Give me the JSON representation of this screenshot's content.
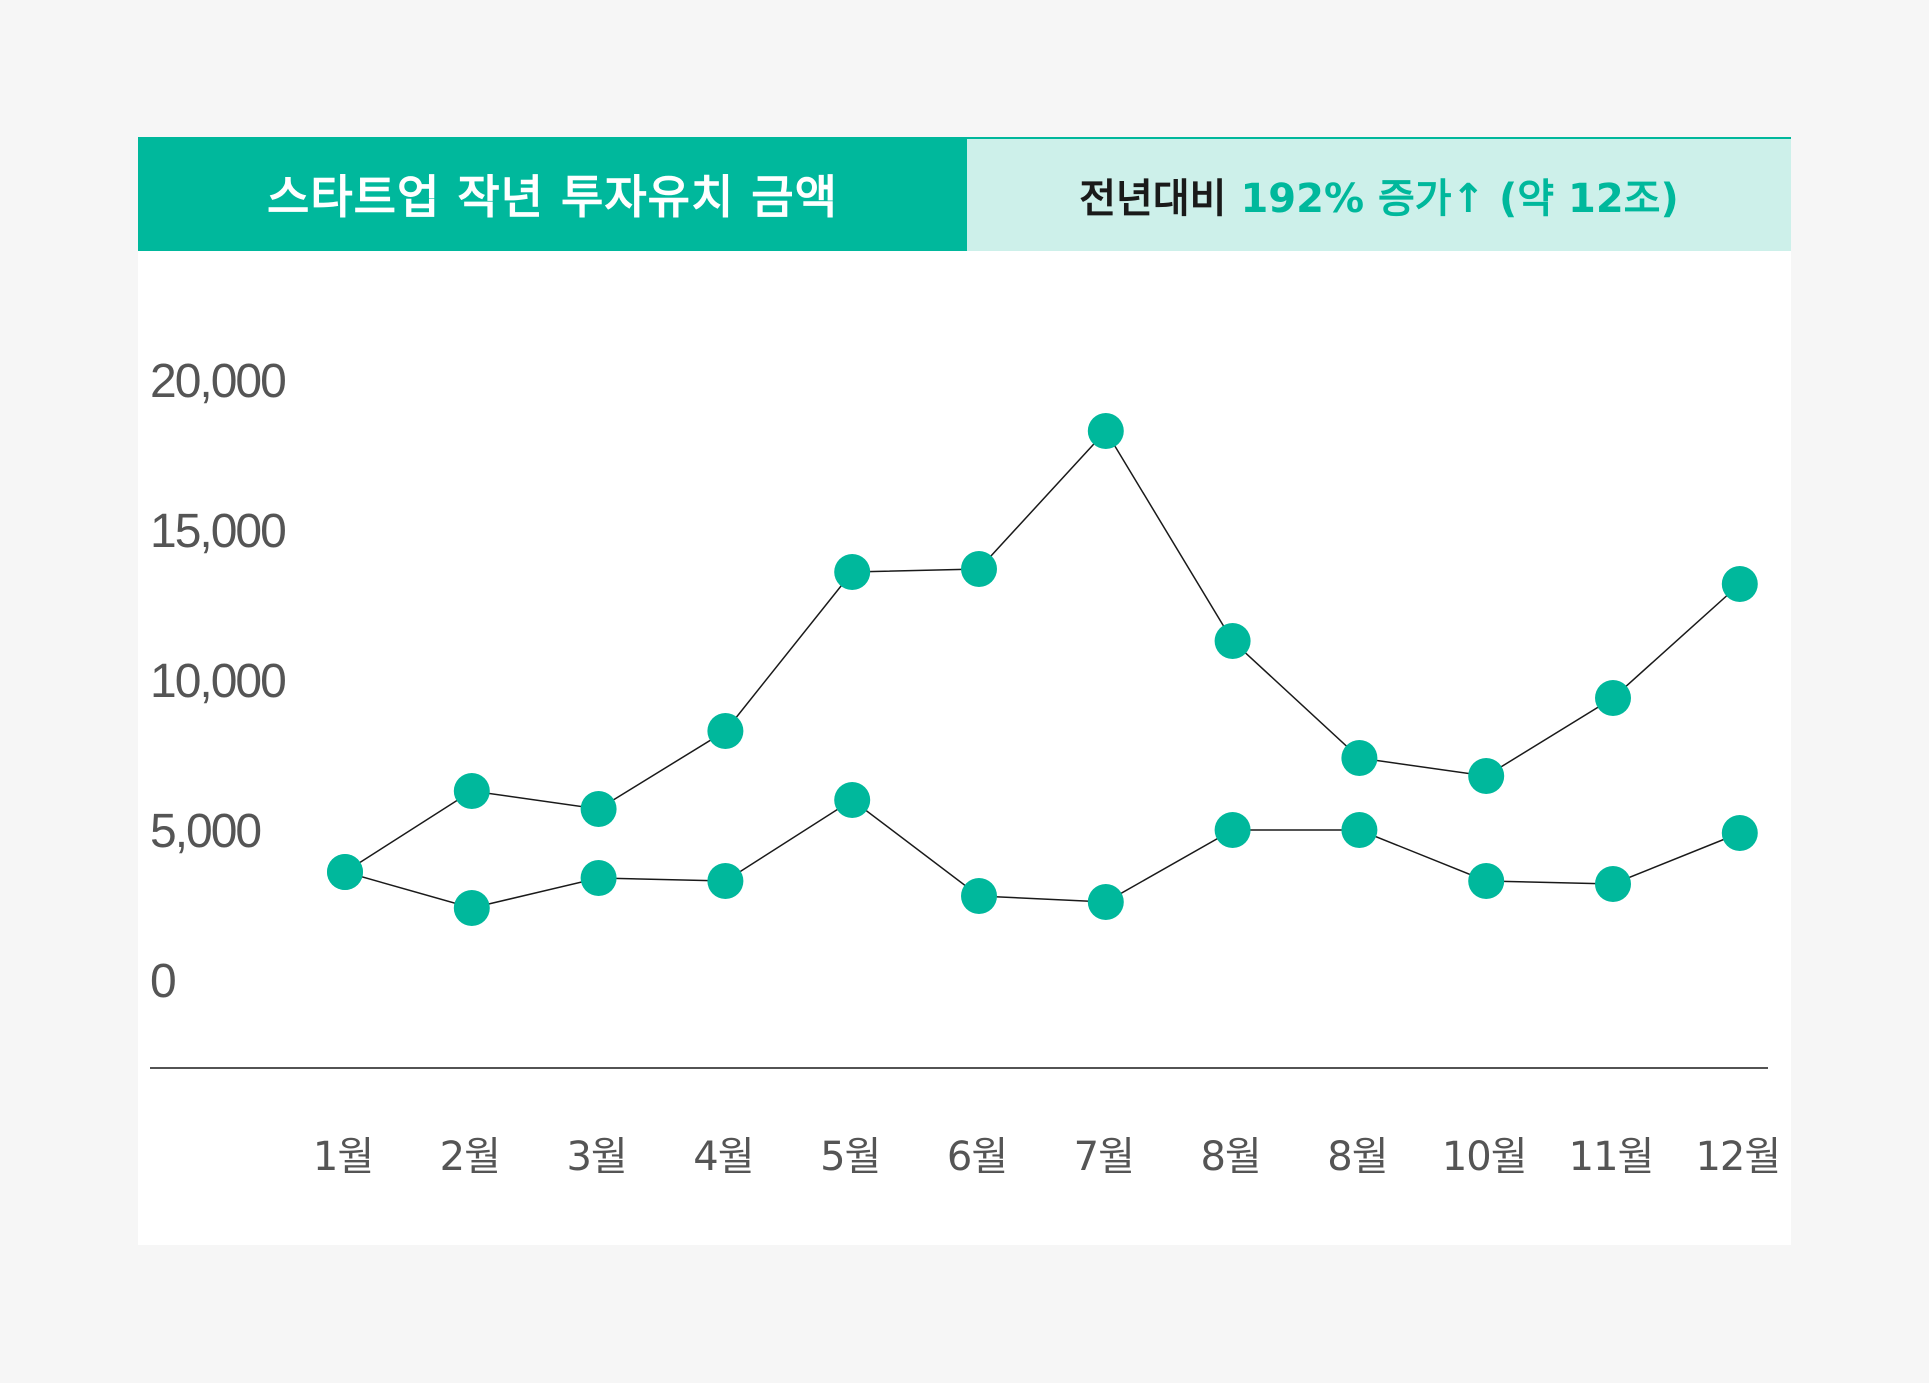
{
  "header": {
    "title": "스타트업 작년 투자유치 금액",
    "comparison_label": "전년대비",
    "comparison_value": "192% 증가↑ (약 12조)"
  },
  "colors": {
    "accent": "#00b89c",
    "header_right_bg": "#cdf0ea",
    "line": "#1a1a1a",
    "axis_text": "#555555"
  },
  "chart_data": {
    "type": "line",
    "categories": [
      "1월",
      "2월",
      "3월",
      "4월",
      "5월",
      "6월",
      "7월",
      "8월",
      "8월",
      "10월",
      "11월",
      "12월"
    ],
    "y_ticks": [
      "0",
      "5,000",
      "10,000",
      "15,000",
      "20,000"
    ],
    "ylim": [
      0,
      20000
    ],
    "grid": false,
    "series": [
      {
        "values": [
          3600,
          6300,
          5700,
          8300,
          13600,
          13700,
          18300,
          11300,
          7400,
          6800,
          9400,
          13200
        ]
      },
      {
        "values": [
          3600,
          2400,
          3400,
          3300,
          6000,
          2800,
          2600,
          5000,
          5000,
          3300,
          3200,
          4900
        ]
      }
    ]
  }
}
